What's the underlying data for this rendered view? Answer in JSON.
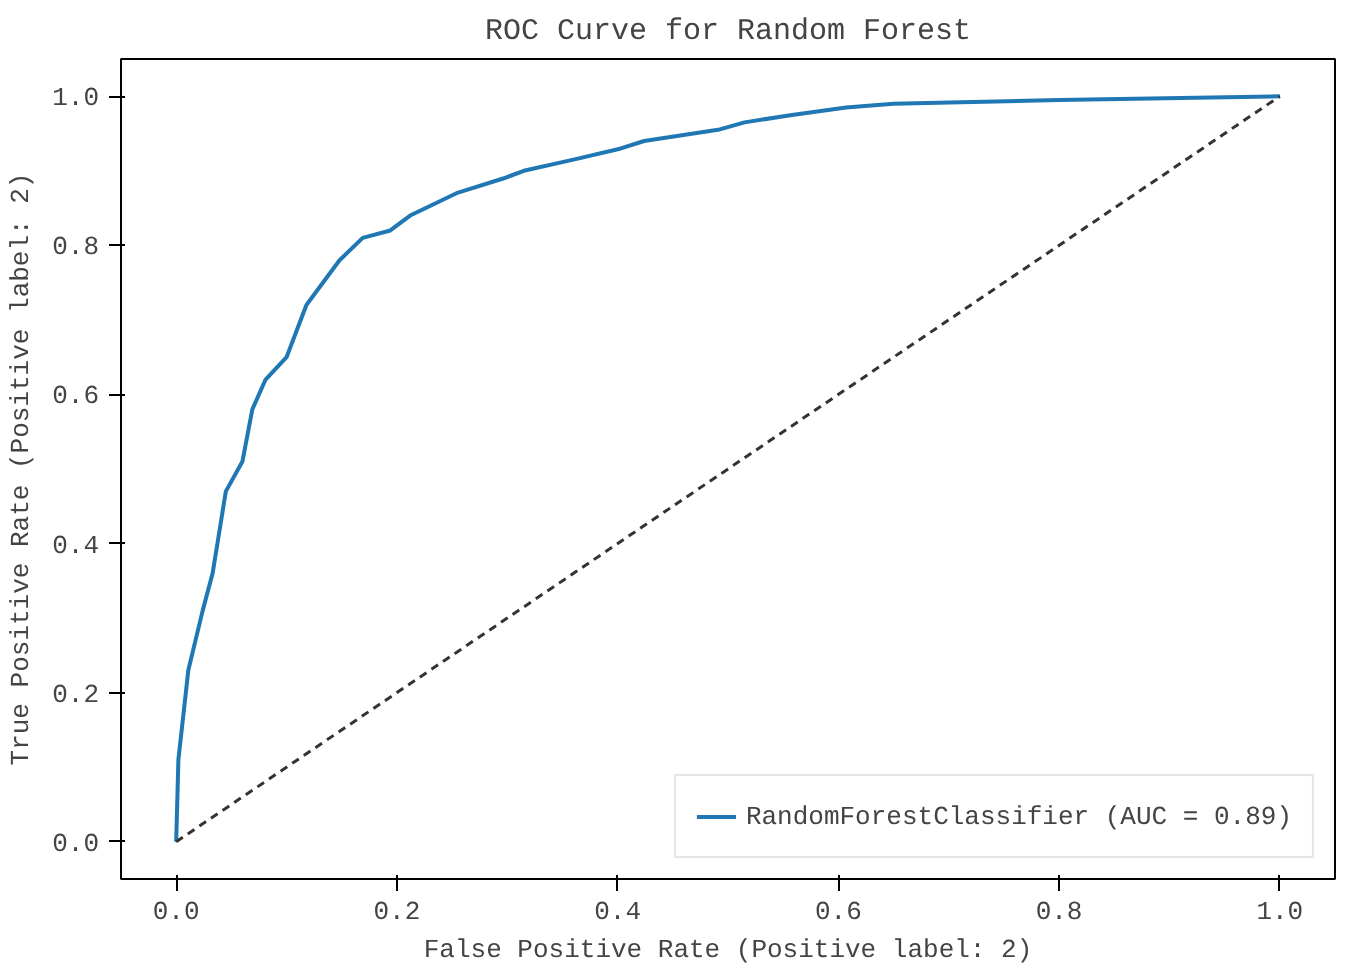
{
  "chart_data": {
    "type": "line",
    "title": "ROC Curve for Random Forest",
    "xlabel": "False Positive Rate (Positive label: 2)",
    "ylabel": "True Positive Rate (Positive label: 2)",
    "xlim": [
      -0.05,
      1.05
    ],
    "ylim": [
      -0.05,
      1.05
    ],
    "xticks": [
      {
        "value": 0,
        "label": "0.0"
      },
      0.2,
      0.4,
      0.6,
      0.8,
      {
        "value": 1,
        "label": "1.0"
      }
    ],
    "yticks": [
      {
        "value": 0,
        "label": "0.0"
      },
      0.2,
      0.4,
      0.6,
      0.8,
      {
        "value": 1,
        "label": "1.0"
      }
    ],
    "grid": false,
    "legend": "bottom right",
    "marker": "none",
    "series": [
      {
        "name": "RandomForestClassifier (AUC = 0.89)",
        "color": "#1f77b4",
        "line_style": "solid",
        "x": [
          0.0,
          0.002,
          0.011,
          0.024,
          0.033,
          0.045,
          0.06,
          0.069,
          0.081,
          0.1,
          0.118,
          0.148,
          0.169,
          0.194,
          0.212,
          0.254,
          0.297,
          0.315,
          0.36,
          0.403,
          0.424,
          0.491,
          0.515,
          0.558,
          0.607,
          0.65,
          0.8,
          1.0
        ],
        "values": [
          0.0,
          0.11,
          0.23,
          0.31,
          0.36,
          0.47,
          0.51,
          0.58,
          0.62,
          0.65,
          0.72,
          0.78,
          0.81,
          0.82,
          0.84,
          0.87,
          0.89,
          0.9,
          0.915,
          0.93,
          0.94,
          0.955,
          0.965,
          0.975,
          0.985,
          0.99,
          0.995,
          1.0
        ]
      },
      {
        "color": "#333333",
        "line_style": "dashed",
        "x": [
          0.0,
          1.0
        ],
        "values": [
          0.0,
          1.0
        ]
      }
    ]
  }
}
